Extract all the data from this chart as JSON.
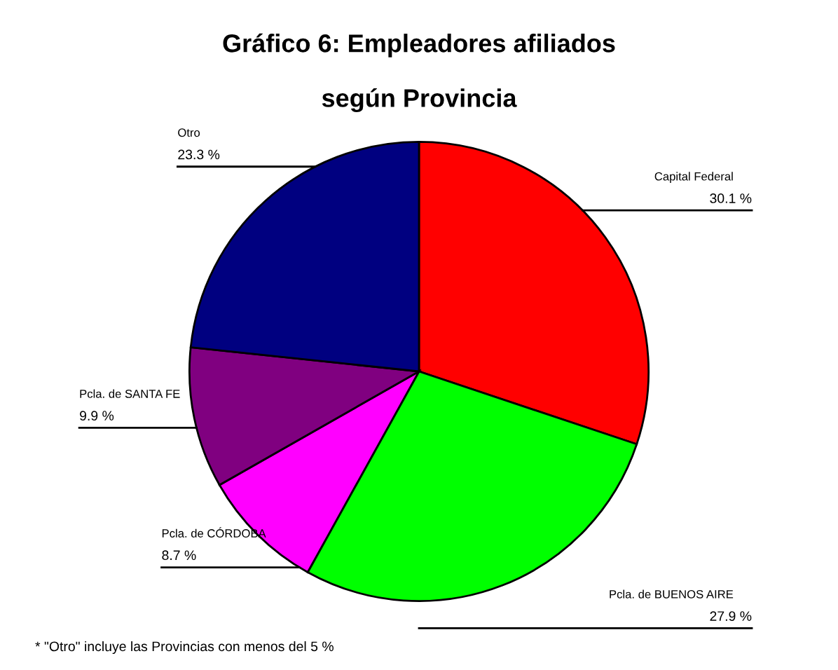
{
  "chart_data": {
    "type": "pie",
    "title": "Gráfico 6: Empleadores afiliados\n\nsegún Provincia",
    "categories": [
      "Capital Federal",
      "Pcla. de BUENOS AIRE",
      "Pcla. de CÓRDOBA",
      "Pcla. de SANTA FE",
      "Otro"
    ],
    "values": [
      30.1,
      27.9,
      8.7,
      9.9,
      23.3
    ],
    "value_labels": [
      "30.1 %",
      "27.9 %",
      "8.7 %",
      "9.9 %",
      "23.3 %"
    ],
    "colors": [
      "#ff0000",
      "#00ff00",
      "#ff00ff",
      "#800080",
      "#000080"
    ],
    "annotations": [
      "* \"Otro\" incluye las Provincias con menos del 5 %"
    ]
  }
}
